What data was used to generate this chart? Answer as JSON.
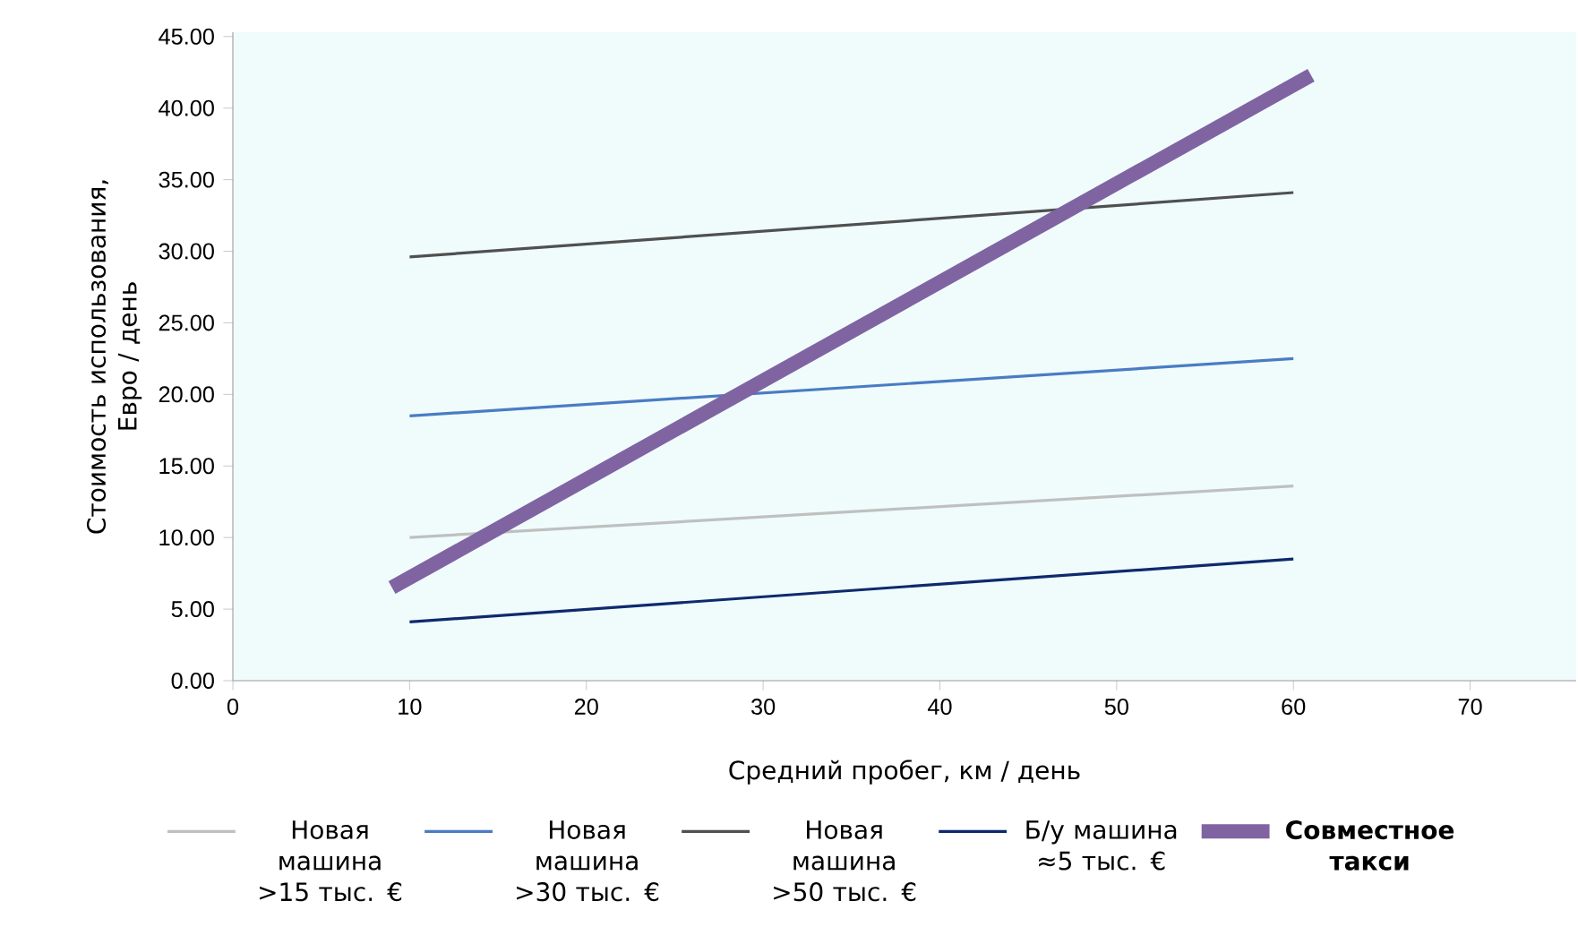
{
  "chart_data": {
    "type": "line",
    "xlabel": "Средний пробег, км / день",
    "ylabel": "Стоимость использования, Евро / день",
    "xlim": [
      0,
      76
    ],
    "xticks": [
      0,
      10,
      20,
      30,
      40,
      50,
      60,
      70
    ],
    "ylim": [
      0,
      45.3
    ],
    "yticks": [
      {
        "value": 0,
        "label": "0.00"
      },
      {
        "value": 5,
        "label": "5.00"
      },
      {
        "value": 10,
        "label": "10.00"
      },
      {
        "value": 15,
        "label": "15.00"
      },
      {
        "value": 20,
        "label": "20.00"
      },
      {
        "value": 25,
        "label": "25.00"
      },
      {
        "value": 30,
        "label": "30.00"
      },
      {
        "value": 35,
        "label": "35.00"
      },
      {
        "value": 40,
        "label": "40.00"
      },
      {
        "value": 45,
        "label": "45.00"
      }
    ],
    "legend": "bottom",
    "marker": "none",
    "line_style": "solid",
    "grid": false,
    "series": [
      {
        "name": "Новая машина >15 тыс. €",
        "color": "#c0c0c0",
        "x": [
          10,
          60
        ],
        "values": [
          10.0,
          13.6
        ]
      },
      {
        "name": "Новая машина >30 тыс. €",
        "color": "#4a7cc4",
        "x": [
          10,
          60
        ],
        "values": [
          18.5,
          22.5
        ]
      },
      {
        "name": "Новая машина >50 тыс. €",
        "color": "#505050",
        "x": [
          10,
          60
        ],
        "values": [
          29.6,
          34.1
        ]
      },
      {
        "name": "Б/у машина ≈5 тыс. €",
        "color": "#0d2a6e",
        "x": [
          10,
          60
        ],
        "values": [
          4.1,
          8.5
        ]
      },
      {
        "name": "**Совместное такси**",
        "color": "#8064a2",
        "x": [
          9,
          61
        ],
        "values": [
          6.5,
          42.3
        ]
      }
    ]
  }
}
